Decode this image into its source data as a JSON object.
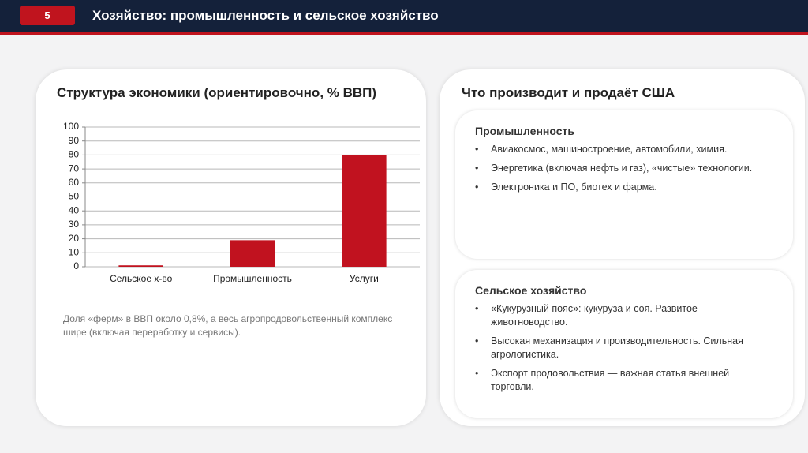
{
  "header": {
    "number": "5",
    "title": "Хозяйство: промышленность и сельское хозяйство"
  },
  "left_panel": {
    "title": "Структура экономики (ориентировочно, % ВВП)",
    "note": "Доля «ферм» в ВВП около 0,8%, а весь агропродовольственный комплекс шире (включая переработку и сервисы)."
  },
  "chart_data": {
    "type": "bar",
    "categories": [
      "Сельское х-во",
      "Промышленность",
      "Услуги"
    ],
    "values": [
      1,
      19,
      80
    ],
    "color": "#c1121f",
    "ylim": [
      0,
      100
    ],
    "yticks": [
      0,
      10,
      20,
      30,
      40,
      50,
      60,
      70,
      80,
      90,
      100
    ],
    "grid": true
  },
  "right_panel": {
    "title": "Что производит и продаёт США",
    "industry": {
      "title": "Промышленность",
      "items": [
        "Авиакосмос, машиностроение, автомобили, химия.",
        "Энергетика (включая нефть и газ), «чистые» технологии.",
        "Электроника и ПО, биотех и фарма."
      ]
    },
    "agriculture": {
      "title": "Сельское хозяйство",
      "items": [
        "«Кукурузный пояс»: кукуруза и соя. Развитое животноводство.",
        "Высокая механизация и производительность. Сильная агрологистика.",
        "Экспорт продовольствия — важная статья внешней торговли."
      ]
    }
  }
}
